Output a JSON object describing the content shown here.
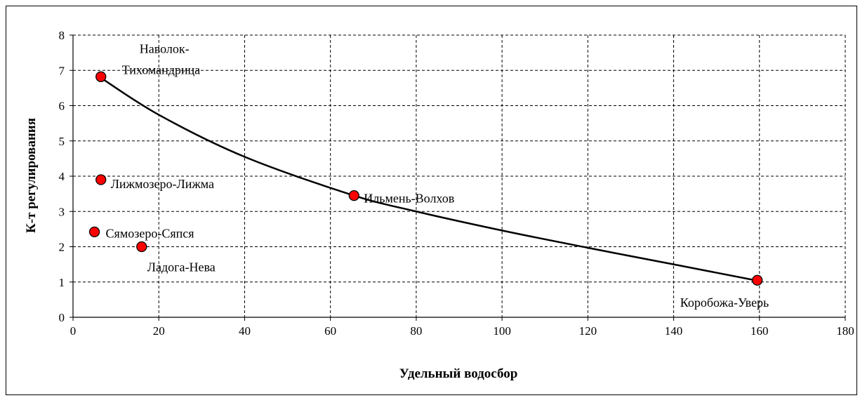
{
  "chart_data": {
    "type": "scatter",
    "title": "",
    "xlabel": "Удельный водосбор",
    "ylabel": "К-т регулирования",
    "xlim": [
      0,
      180
    ],
    "ylim": [
      0,
      8
    ],
    "xticks": [
      0,
      20,
      40,
      60,
      80,
      100,
      120,
      140,
      160,
      180
    ],
    "yticks": [
      0,
      1,
      2,
      3,
      4,
      5,
      6,
      7,
      8
    ],
    "grid": true,
    "marker_color": "#ff0000",
    "trendline": {
      "type": "power",
      "points": [
        [
          6,
          6.83
        ],
        [
          20,
          5.74
        ],
        [
          40,
          4.55
        ],
        [
          65,
          3.47
        ],
        [
          80,
          3.0
        ],
        [
          100,
          2.46
        ],
        [
          120,
          1.97
        ],
        [
          140,
          1.5
        ],
        [
          159,
          1.05
        ]
      ]
    },
    "points": [
      {
        "label": "Наволок-Тихомандрица",
        "label_lines": [
          "Наволок-",
          "Тихомандрица"
        ],
        "x": 6.5,
        "y": 6.82
      },
      {
        "label": "Лижмозеро-Лижма",
        "label_lines": [
          "Лижмозеро-Лижма"
        ],
        "x": 6.5,
        "y": 3.9
      },
      {
        "label": "Ильмень-Волхов",
        "label_lines": [
          "Ильмень-Волхов"
        ],
        "x": 65.5,
        "y": 3.45
      },
      {
        "label": "Сямозеро-Сяпся",
        "label_lines": [
          "Сямозеро-Сяпся"
        ],
        "x": 5.0,
        "y": 2.42
      },
      {
        "label": "Ладога-Нева",
        "label_lines": [
          "Ладога-Нева"
        ],
        "x": 16.0,
        "y": 2.0
      },
      {
        "label": "Коробожа-Уверь",
        "label_lines": [
          "Коробожа-Уверь"
        ],
        "x": 159.5,
        "y": 1.05
      }
    ]
  }
}
